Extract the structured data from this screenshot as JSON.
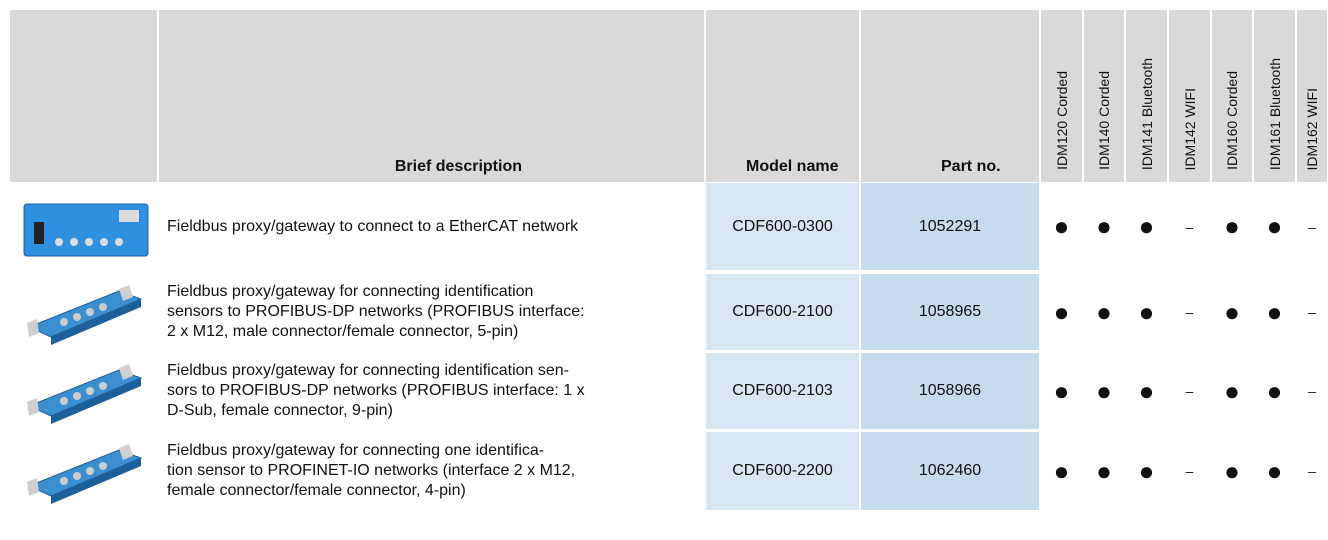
{
  "table": {
    "header": {
      "brief_description": "Brief description",
      "model_name": "Model name",
      "part_no": "Part no.",
      "devices": [
        "IDM120 Corded",
        "IDM140 Corded",
        "IDM141 Bluetooth",
        "IDM142 WIFI",
        "IDM160 Corded",
        "IDM161 Bluetooth",
        "IDM162 WIFI"
      ]
    },
    "rows": [
      {
        "description": [
          "Fieldbus proxy/gateway to connect to a EtherCAT network"
        ],
        "model": "CDF600-0300",
        "part": "1052291",
        "availability": [
          "●",
          "●",
          "●",
          "–",
          "●",
          "●",
          "–"
        ]
      },
      {
        "description": [
          "Fieldbus proxy/gateway for connecting identification",
          "sensors to PROFIBUS-DP networks (PROFIBUS interface:",
          "2 x M12, male connector/female connector, 5-pin)"
        ],
        "model": "CDF600-2100",
        "part": "1058965",
        "availability": [
          "●",
          "●",
          "●",
          "–",
          "●",
          "●",
          "–"
        ]
      },
      {
        "description": [
          "Fieldbus proxy/gateway for connecting identification sen-",
          "sors to PROFIBUS-DP networks (PROFIBUS interface: 1 x",
          "D-Sub, female connector, 9-pin)"
        ],
        "model": "CDF600-2103",
        "part": "1058966",
        "availability": [
          "●",
          "●",
          "●",
          "–",
          "●",
          "●",
          "–"
        ]
      },
      {
        "description": [
          "Fieldbus proxy/gateway for connecting one identifica-",
          "tion sensor to PROFINET-IO networks (interface 2 x M12,",
          "female connector/female connector, 4-pin)"
        ],
        "model": "CDF600-2200",
        "part": "1062460",
        "availability": [
          "●",
          "●",
          "●",
          "–",
          "●",
          "●",
          "–"
        ]
      }
    ]
  }
}
